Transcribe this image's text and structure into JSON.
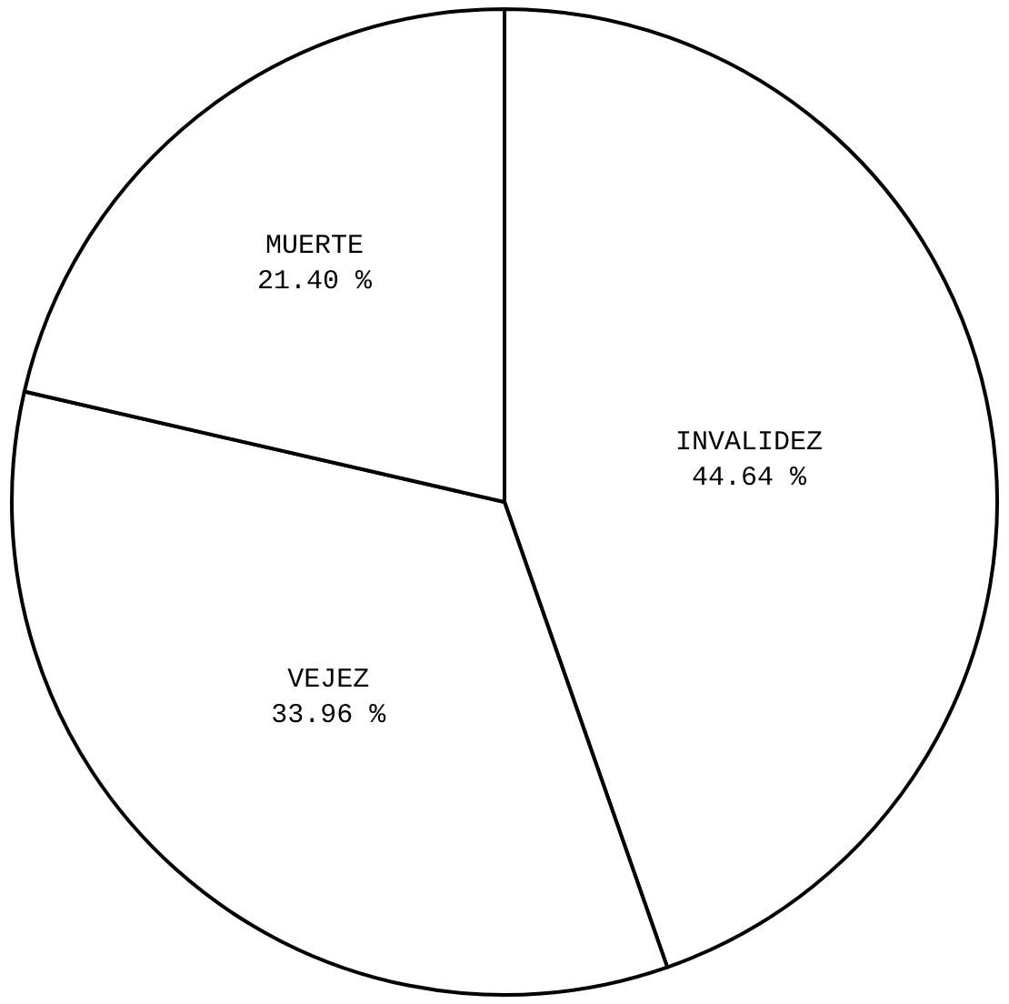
{
  "chart_data": {
    "type": "pie",
    "categories": [
      "INVALIDEZ",
      "VEJEZ",
      "MUERTE"
    ],
    "values": [
      44.64,
      33.96,
      21.4
    ],
    "value_labels": [
      "44.64 %",
      "33.96 %",
      "21.40 %"
    ],
    "colors": [
      "#ffffff",
      "#ffffff",
      "#ffffff"
    ],
    "legend": false
  }
}
